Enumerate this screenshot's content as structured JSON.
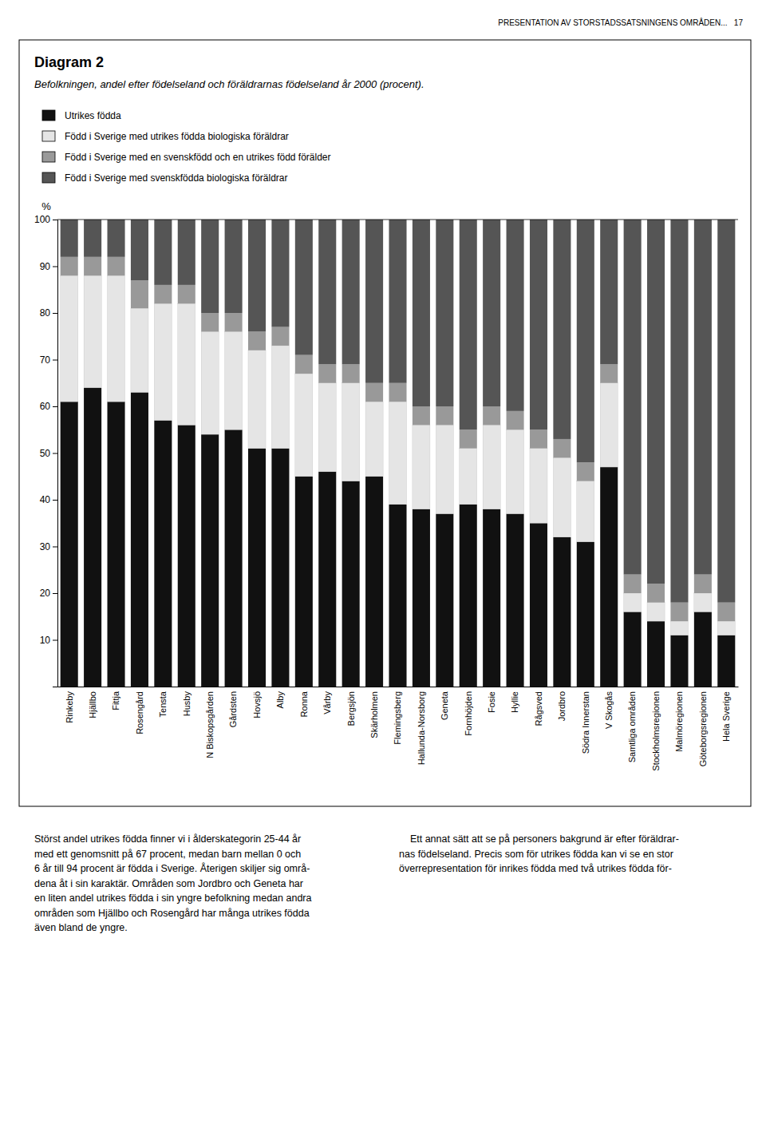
{
  "chart_data": {
    "type": "bar",
    "stacked": true,
    "title": "Diagram 2",
    "subtitle": "Befolkningen, andel efter födelseland och föräldrarnas födelseland år 2000 (procent).",
    "ylabel": "%",
    "categories": [
      "Rinkeby",
      "Hjällbo",
      "Fittja",
      "Rosengård",
      "Tensta",
      "Husby",
      "N Biskopsgården",
      "Gårdsten",
      "Hovsjö",
      "Alby",
      "Ronna",
      "Vårby",
      "Bergsjön",
      "Skärholmen",
      "Flemingsberg",
      "Hallunda-Norsborg",
      "Geneta",
      "Fornhöjden",
      "Fosie",
      "Hyllie",
      "Rågsved",
      "Jordbro",
      "Södra Innerstan",
      "V Skogås",
      "Samtliga områden",
      "Stockholmsregionen",
      "Malmöregionen",
      "Göteborgsregionen",
      "Hela Sverige"
    ],
    "series": [
      {
        "name": "Utrikes födda",
        "color": "#111111",
        "values": [
          61,
          64,
          61,
          63,
          57,
          56,
          54,
          55,
          51,
          51,
          45,
          46,
          44,
          45,
          39,
          38,
          37,
          39,
          38,
          37,
          35,
          32,
          31,
          47,
          16,
          14,
          11,
          16,
          11
        ]
      },
      {
        "name": "Född i Sverige med utrikes födda biologiska föräldrar",
        "color": "#e5e5e5",
        "values": [
          27,
          24,
          27,
          18,
          25,
          26,
          22,
          21,
          21,
          22,
          22,
          19,
          21,
          16,
          22,
          18,
          19,
          12,
          18,
          18,
          16,
          17,
          13,
          18,
          4,
          4,
          3,
          4,
          3
        ]
      },
      {
        "name": "Född i Sverige med en svenskfödd och en utrikes född förälder",
        "color": "#999999",
        "values": [
          4,
          4,
          4,
          6,
          4,
          4,
          4,
          4,
          4,
          4,
          4,
          4,
          4,
          4,
          4,
          4,
          4,
          4,
          4,
          4,
          4,
          4,
          4,
          4,
          4,
          4,
          4,
          4,
          4
        ]
      },
      {
        "name": "Född i Sverige med svenskfödda biologiska föräldrar",
        "color": "#555555",
        "values": [
          8,
          8,
          8,
          13,
          14,
          14,
          20,
          20,
          24,
          23,
          29,
          31,
          31,
          35,
          35,
          40,
          40,
          45,
          40,
          41,
          45,
          47,
          52,
          31,
          76,
          78,
          82,
          76,
          82
        ]
      }
    ],
    "ylim": [
      0,
      100
    ],
    "yticks": [
      10,
      20,
      30,
      40,
      50,
      60,
      70,
      80,
      90,
      100
    ],
    "grid": false,
    "legend": "top-left",
    "annotations": [
      "PRESENTATION AV STORSTADSSATSNINGENS OMRÅDEN...   17",
      "Störst andel utrikes födda finner vi i ålderskategorin 25-44 år\nmed ett genomsnitt på 67 procent, medan barn mellan 0 och\n6 år till 94 procent är födda i Sverige. Återigen skiljer sig områ-\ndena åt i sin karaktär. Områden som Jordbro och Geneta har\nen liten andel utrikes födda i sin yngre befolkning medan andra\nområden som Hjällbo och Rosengård har många utrikes födda\näven bland de yngre.",
      "    Ett annat sätt att se på personers bakgrund är efter föräldrar-\nnas födelseland. Precis som för utrikes födda kan vi se en stor\növerrepresentation för inrikes födda med två utrikes födda för-"
    ]
  }
}
